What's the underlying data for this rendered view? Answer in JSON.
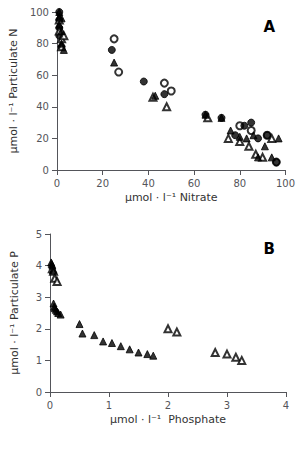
{
  "chart_data": [
    {
      "type": "scatter",
      "title": "A",
      "xlabel": "μmol · l⁻¹ Nitrate",
      "ylabel": "μmol · l⁻¹ Particulate N",
      "xlim": [
        0,
        100
      ],
      "ylim": [
        0,
        100
      ],
      "xticks": [
        0,
        20,
        40,
        60,
        80,
        100
      ],
      "yticks": [
        0,
        20,
        40,
        60,
        80,
        100
      ],
      "grid": false,
      "series": [
        {
          "marker": "open_circle",
          "color": "black",
          "x": [
            25,
            27,
            47,
            50,
            80,
            85,
            92,
            96
          ],
          "values": [
            83,
            62,
            55,
            50,
            28,
            25,
            22,
            5
          ]
        },
        {
          "marker": "circle",
          "color": "black",
          "x": [
            1,
            1,
            1,
            1,
            2,
            24,
            38,
            47,
            65,
            72,
            78,
            82,
            85,
            88,
            92,
            96
          ],
          "values": [
            100,
            95,
            90,
            85,
            78,
            76,
            56,
            48,
            35,
            33,
            22,
            28,
            30,
            20,
            22,
            5
          ]
        },
        {
          "marker": "open_triangle",
          "color": "black",
          "x": [
            1,
            1,
            2,
            2,
            3,
            42,
            48,
            66,
            75,
            80,
            84,
            87,
            90,
            94
          ],
          "values": [
            95,
            88,
            83,
            78,
            85,
            46,
            40,
            33,
            20,
            18,
            15,
            10,
            8,
            20
          ]
        },
        {
          "marker": "triangle",
          "color": "black",
          "x": [
            1,
            1,
            1,
            2,
            2,
            2,
            3,
            25,
            43,
            65,
            72,
            76,
            80,
            83,
            86,
            88,
            91,
            94,
            97
          ],
          "values": [
            100,
            97,
            92,
            96,
            88,
            80,
            76,
            68,
            47,
            35,
            33,
            25,
            21,
            20,
            22,
            8,
            15,
            8,
            20
          ]
        }
      ]
    },
    {
      "type": "scatter",
      "title": "B",
      "xlabel": "μmol · l⁻¹  Phosphate",
      "ylabel": "μmol · l⁻¹ Particulate P",
      "xlim": [
        0,
        4
      ],
      "ylim": [
        0,
        5
      ],
      "xticks": [
        0,
        1,
        2,
        3,
        4
      ],
      "yticks": [
        0,
        1,
        2,
        3,
        4,
        5
      ],
      "grid": false,
      "series": [
        {
          "marker": "open_triangle",
          "color": "black",
          "x": [
            0.04,
            0.06,
            0.08,
            0.12,
            2.0,
            2.15,
            2.8,
            3.0,
            3.15,
            3.25
          ],
          "values": [
            3.9,
            3.82,
            3.6,
            3.5,
            2.0,
            1.9,
            1.25,
            1.2,
            1.1,
            1.0
          ]
        },
        {
          "marker": "triangle",
          "color": "black",
          "x": [
            0.02,
            0.03,
            0.04,
            0.05,
            0.06,
            0.07,
            0.08,
            0.1,
            0.12,
            0.14,
            0.18,
            0.5,
            0.55,
            0.75,
            0.9,
            1.05,
            1.2,
            1.35,
            1.5,
            1.65,
            1.75
          ],
          "values": [
            4.1,
            4.05,
            4.0,
            3.85,
            2.8,
            2.7,
            2.65,
            2.6,
            2.55,
            2.5,
            2.45,
            2.15,
            1.85,
            1.8,
            1.6,
            1.55,
            1.45,
            1.35,
            1.25,
            1.2,
            1.15
          ]
        }
      ]
    }
  ]
}
